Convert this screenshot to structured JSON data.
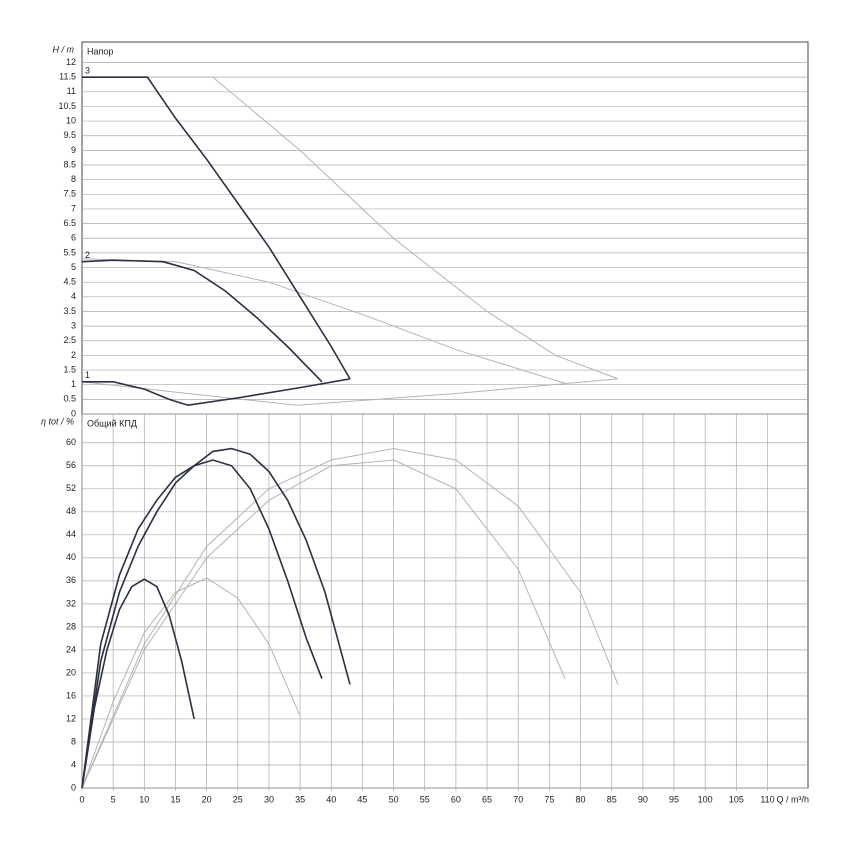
{
  "chart_data": [
    {
      "type": "line",
      "title": "Напор",
      "y_label": "H / m",
      "xlim": [
        0,
        116.5
      ],
      "ylim": [
        0,
        12.7
      ],
      "yticks": [
        0,
        0.5,
        1,
        1.5,
        2,
        2.5,
        3,
        3.5,
        4,
        4.5,
        5,
        5.5,
        6,
        6.5,
        7,
        7.5,
        8,
        8.5,
        9,
        9.5,
        10,
        10.5,
        11,
        11.5,
        12
      ],
      "grid": true,
      "series": [
        {
          "color": "#b4b4b4",
          "x": [
            0,
            21,
            35,
            50,
            65,
            76,
            86
          ],
          "values": [
            11.5,
            11.5,
            9,
            6,
            3.5,
            2,
            1.2
          ]
        },
        {
          "color": "#b4b4b4",
          "x": [
            0,
            15,
            30,
            45,
            60,
            77.5
          ],
          "values": [
            5.3,
            5.2,
            4.5,
            3.4,
            2.2,
            1.05
          ]
        },
        {
          "color": "#b4b4b4",
          "x": [
            0,
            17,
            34.5,
            60,
            86
          ],
          "values": [
            1.1,
            0.7,
            0.3,
            0.7,
            1.2
          ]
        },
        {
          "name": "3",
          "color": "#2b3040",
          "x": [
            0,
            10.5,
            15,
            20,
            25,
            30,
            35,
            40,
            43
          ],
          "values": [
            11.5,
            11.5,
            10.1,
            8.7,
            7.2,
            5.7,
            4,
            2.3,
            1.2
          ]
        },
        {
          "name": "2",
          "color": "#2b3040",
          "x": [
            0,
            5,
            13,
            18,
            23,
            28,
            33,
            38.5
          ],
          "values": [
            5.2,
            5.25,
            5.2,
            4.9,
            4.2,
            3.3,
            2.3,
            1.1
          ]
        },
        {
          "name": "1",
          "color": "#2b3040",
          "x": [
            0,
            5,
            10,
            14,
            17,
            25,
            35,
            43
          ],
          "values": [
            1.1,
            1.1,
            0.85,
            0.5,
            0.3,
            0.55,
            0.9,
            1.2
          ]
        }
      ]
    },
    {
      "type": "line",
      "title": "Общий КПД",
      "y_label": "η tot / %",
      "x_label": "Q / m³/h",
      "xlim": [
        0,
        116.5
      ],
      "ylim": [
        0,
        65
      ],
      "xticks": [
        0,
        5,
        10,
        15,
        20,
        25,
        30,
        35,
        40,
        45,
        50,
        55,
        60,
        65,
        70,
        75,
        80,
        85,
        90,
        95,
        100,
        105,
        110
      ],
      "yticks": [
        0,
        4,
        8,
        12,
        16,
        20,
        24,
        28,
        32,
        36,
        40,
        44,
        48,
        52,
        56,
        60
      ],
      "grid": true,
      "series": [
        {
          "color": "#b4b4b4",
          "x": [
            0,
            10,
            20,
            30,
            40,
            50,
            60,
            70,
            80,
            86
          ],
          "values": [
            0,
            25,
            42,
            52,
            57,
            59,
            57,
            49,
            34,
            18
          ]
        },
        {
          "color": "#b4b4b4",
          "x": [
            0,
            10,
            20,
            30,
            40,
            50,
            60,
            70,
            77.5
          ],
          "values": [
            0,
            24,
            40,
            50,
            56,
            57,
            52,
            38,
            19
          ]
        },
        {
          "color": "#b4b4b4",
          "x": [
            0,
            5,
            10,
            15,
            20,
            25,
            30,
            35
          ],
          "values": [
            0,
            15,
            27,
            34,
            36.5,
            33,
            25,
            12.5
          ]
        },
        {
          "color": "#2b3040",
          "x": [
            0,
            2,
            4,
            6,
            8,
            10,
            12,
            14,
            16,
            18
          ],
          "values": [
            0,
            14,
            24,
            31,
            35,
            36.3,
            35,
            30,
            22,
            12
          ]
        },
        {
          "color": "#2b3040",
          "x": [
            0,
            3,
            6,
            9,
            12,
            15,
            18,
            21,
            24,
            27,
            30,
            33,
            36,
            38.5
          ],
          "values": [
            0,
            25,
            37,
            45,
            50,
            54,
            56,
            57,
            56,
            52,
            45,
            36,
            26,
            19
          ]
        },
        {
          "color": "#2b3040",
          "x": [
            0,
            3,
            6,
            9,
            12,
            15,
            18,
            21,
            24,
            27,
            30,
            33,
            36,
            39,
            41,
            43
          ],
          "values": [
            0,
            22,
            34,
            42,
            48,
            53,
            56,
            58.5,
            59,
            58,
            55,
            50,
            43,
            34,
            26,
            18
          ]
        }
      ]
    }
  ]
}
